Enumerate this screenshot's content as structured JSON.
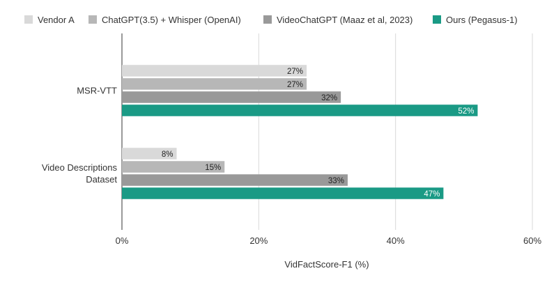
{
  "chart_data": {
    "type": "bar",
    "orientation": "horizontal",
    "categories": [
      "MSR-VTT",
      "Video Descriptions Dataset"
    ],
    "series": [
      {
        "name": "Vendor A",
        "color": "#d9d9d9",
        "values": [
          27,
          8
        ],
        "labels": [
          "27%",
          "8%"
        ]
      },
      {
        "name": "ChatGPT(3.5) + Whisper (OpenAI)",
        "color": "#b7b7b7",
        "values": [
          27,
          15
        ],
        "labels": [
          "27%",
          "15%"
        ]
      },
      {
        "name": "VideoChatGPT (Maaz et al, 2023)",
        "color": "#999999",
        "values": [
          32,
          33
        ],
        "labels": [
          "32%",
          "33%"
        ]
      },
      {
        "name": "Ours (Pegasus-1)",
        "color": "#1a9a85",
        "values": [
          52,
          47
        ],
        "labels": [
          "52%",
          "47%"
        ]
      }
    ],
    "xlabel": "VidFactScore-F1 (%)",
    "xlim": [
      0,
      60
    ],
    "xticks": [
      "0%",
      "20%",
      "40%",
      "60%"
    ],
    "legend_position": "top",
    "grid": true
  }
}
